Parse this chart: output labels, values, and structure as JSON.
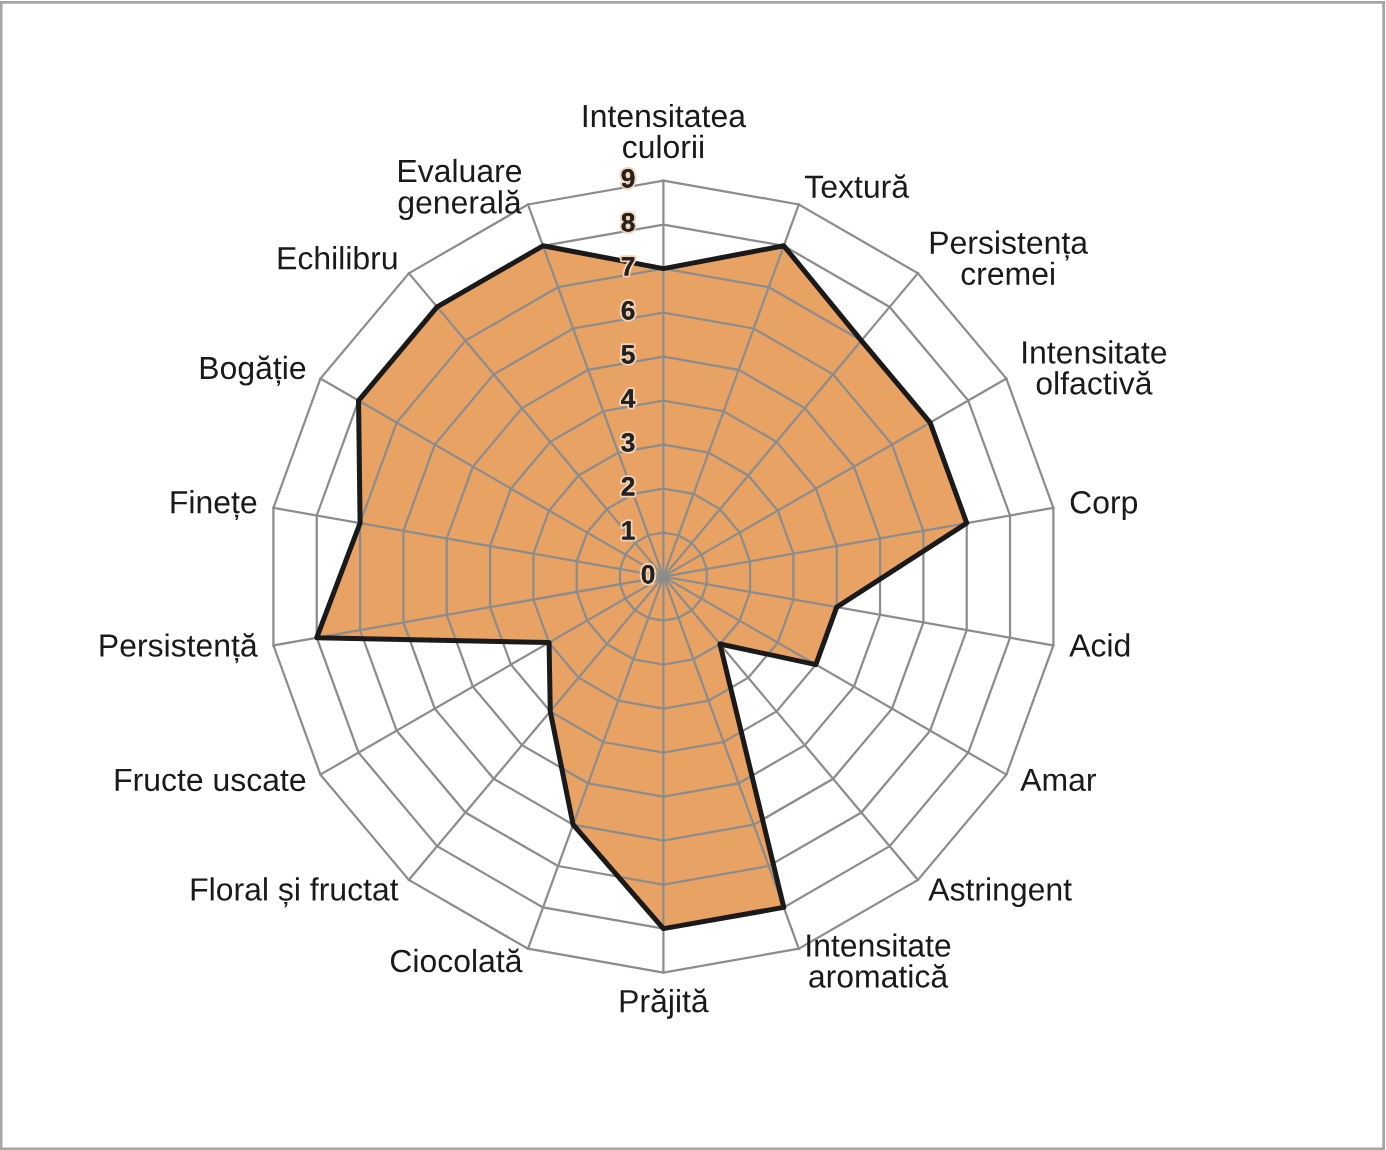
{
  "chart_data": {
    "type": "radar",
    "categories": [
      "Intensitatea\nculorii",
      "Textură",
      "Persistența\ncremei",
      "Intensitate\nolfactivă",
      "Corp",
      "Acid",
      "Amar",
      "Astringent",
      "Intensitate\naromatică",
      "Prăjită",
      "Ciocolată",
      "Floral și fructat",
      "Fructe uscate",
      "Persistență",
      "Finețe",
      "Bogăție",
      "Echilibru",
      "Evaluare\ngenerală"
    ],
    "series": [
      {
        "color": "#e8a264",
        "values": [
          7,
          8,
          7,
          7,
          7,
          4,
          4,
          2,
          8,
          8,
          6,
          4,
          3,
          8,
          7,
          8,
          8,
          8
        ]
      }
    ],
    "ylim": [
      0,
      9
    ],
    "yticks": [
      0,
      1,
      2,
      3,
      4,
      5,
      6,
      7,
      8,
      9
    ],
    "grid": true
  }
}
